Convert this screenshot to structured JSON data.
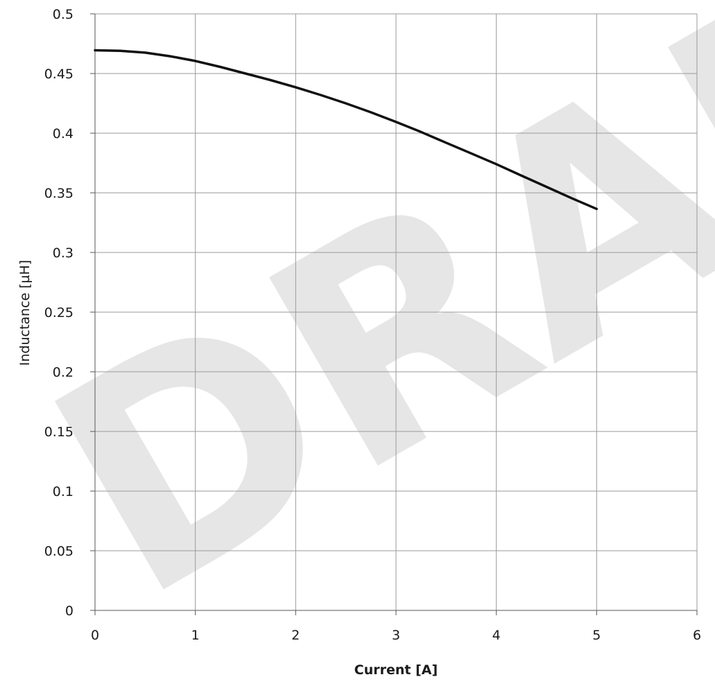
{
  "chart_data": {
    "type": "line",
    "title": "",
    "xlabel": "Current [A]",
    "ylabel": "Inductance [µH]",
    "xlim": [
      0,
      6
    ],
    "ylim": [
      0,
      0.5
    ],
    "xticks": [
      0,
      1,
      2,
      3,
      4,
      5,
      6
    ],
    "yticks": [
      0,
      0.05,
      0.1,
      0.15,
      0.2,
      0.25,
      0.3,
      0.35,
      0.4,
      0.45,
      0.5
    ],
    "x_tick_labels": [
      "0",
      "1",
      "2",
      "3",
      "4",
      "5",
      "6"
    ],
    "y_tick_labels": [
      "0",
      "0.05",
      "0.1",
      "0.15",
      "0.2",
      "0.25",
      "0.3",
      "0.35",
      "0.4",
      "0.45",
      "0.5"
    ],
    "grid": true,
    "legend": "none",
    "series": [
      {
        "color": "#111111",
        "x": [
          0,
          0.25,
          0.5,
          0.75,
          1.0,
          1.25,
          1.5,
          1.75,
          2.0,
          2.25,
          2.5,
          2.75,
          3.0,
          3.25,
          3.5,
          3.75,
          4.0,
          4.25,
          4.5,
          4.75,
          5.0
        ],
        "y": [
          0.4695,
          0.469,
          0.4675,
          0.4645,
          0.4605,
          0.4555,
          0.45,
          0.4445,
          0.4385,
          0.432,
          0.425,
          0.4175,
          0.4095,
          0.401,
          0.392,
          0.383,
          0.374,
          0.3645,
          0.355,
          0.3455,
          0.3365
        ]
      }
    ],
    "watermark": "DRAFT"
  }
}
